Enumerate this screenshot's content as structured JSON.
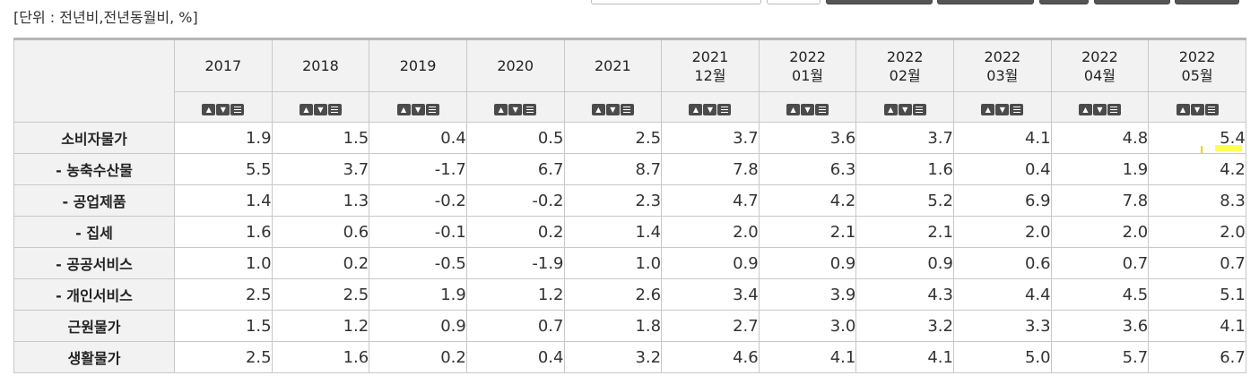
{
  "unit_label": "[단위 : 전년비,전년동월비, %]",
  "columns": [
    {
      "line1": "2017",
      "line2": ""
    },
    {
      "line1": "2018",
      "line2": ""
    },
    {
      "line1": "2019",
      "line2": ""
    },
    {
      "line1": "2020",
      "line2": ""
    },
    {
      "line1": "2021",
      "line2": ""
    },
    {
      "line1": "2021",
      "line2": "12월"
    },
    {
      "line1": "2022",
      "line2": "01월"
    },
    {
      "line1": "2022",
      "line2": "02월"
    },
    {
      "line1": "2022",
      "line2": "03월"
    },
    {
      "line1": "2022",
      "line2": "04월"
    },
    {
      "line1": "2022",
      "line2": "05월"
    }
  ],
  "sort_icons": {
    "asc": "sort-ascending-icon",
    "desc": "sort-descending-icon",
    "menu": "column-menu-icon"
  },
  "rows": [
    {
      "label": "소비자물가",
      "values": [
        "1.9",
        "1.5",
        "0.4",
        "0.5",
        "2.5",
        "3.7",
        "3.6",
        "3.7",
        "4.1",
        "4.8",
        "5.4"
      ]
    },
    {
      "label": "- 농축수산물",
      "values": [
        "5.5",
        "3.7",
        "-1.7",
        "6.7",
        "8.7",
        "7.8",
        "6.3",
        "1.6",
        "0.4",
        "1.9",
        "4.2"
      ]
    },
    {
      "label": "- 공업제품",
      "values": [
        "1.4",
        "1.3",
        "-0.2",
        "-0.2",
        "2.3",
        "4.7",
        "4.2",
        "5.2",
        "6.9",
        "7.8",
        "8.3"
      ]
    },
    {
      "label": "- 집세",
      "values": [
        "1.6",
        "0.6",
        "-0.1",
        "0.2",
        "1.4",
        "2.0",
        "2.1",
        "2.1",
        "2.0",
        "2.0",
        "2.0"
      ]
    },
    {
      "label": "- 공공서비스",
      "values": [
        "1.0",
        "0.2",
        "-0.5",
        "-1.9",
        "1.0",
        "0.9",
        "0.9",
        "0.9",
        "0.6",
        "0.7",
        "0.7"
      ]
    },
    {
      "label": "- 개인서비스",
      "values": [
        "2.5",
        "2.5",
        "1.9",
        "1.2",
        "2.6",
        "3.4",
        "3.9",
        "4.3",
        "4.4",
        "4.5",
        "5.1"
      ]
    },
    {
      "label": "근원물가",
      "values": [
        "1.5",
        "1.2",
        "0.9",
        "0.7",
        "1.8",
        "2.7",
        "3.0",
        "3.2",
        "3.3",
        "3.6",
        "4.1"
      ]
    },
    {
      "label": "생활물가",
      "values": [
        "2.5",
        "1.6",
        "0.2",
        "0.4",
        "3.2",
        "4.6",
        "4.1",
        "4.1",
        "5.0",
        "5.7",
        "6.7"
      ]
    }
  ],
  "highlight_color": "#ffff33"
}
